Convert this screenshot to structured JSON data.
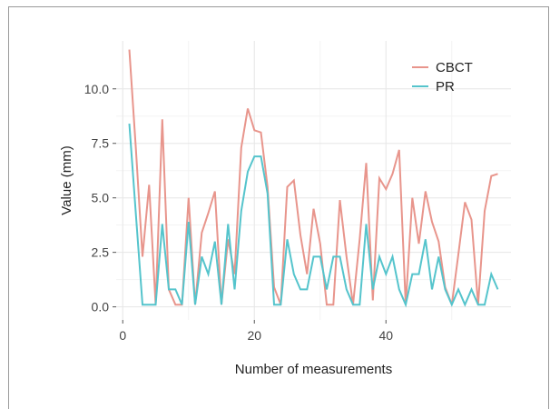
{
  "chart_data": {
    "type": "line",
    "xlabel": "Number of measurements",
    "ylabel": "Value (mm)",
    "xlim": [
      -1,
      59
    ],
    "ylim": [
      -0.6,
      12.2
    ],
    "x_ticks": [
      0,
      20,
      40
    ],
    "x_tick_labels": [
      "0",
      "20",
      "40"
    ],
    "y_ticks": [
      0,
      2.5,
      5,
      7.5,
      10
    ],
    "y_tick_labels": [
      "0.0",
      "2.5",
      "5.0",
      "7.5",
      "10.0"
    ],
    "grid": true,
    "legend_position": "top-right",
    "x": [
      1,
      2,
      3,
      4,
      5,
      6,
      7,
      8,
      9,
      10,
      11,
      12,
      13,
      14,
      15,
      16,
      17,
      18,
      19,
      20,
      21,
      22,
      23,
      24,
      25,
      26,
      27,
      28,
      29,
      30,
      31,
      32,
      33,
      34,
      35,
      36,
      37,
      38,
      39,
      40,
      41,
      42,
      43,
      44,
      45,
      46,
      47,
      48,
      49,
      50,
      51,
      52,
      53,
      54,
      55,
      56,
      57
    ],
    "series": [
      {
        "name": "CBCT",
        "color": "#e8958c",
        "values": [
          11.8,
          7.2,
          2.3,
          5.6,
          0.1,
          8.6,
          0.8,
          0.1,
          0.1,
          5.0,
          0.1,
          3.4,
          4.3,
          5.3,
          0.1,
          3.1,
          1.5,
          7.3,
          9.1,
          8.1,
          8.0,
          5.5,
          0.9,
          0.1,
          5.5,
          5.8,
          3.3,
          1.5,
          4.5,
          2.9,
          0.1,
          0.1,
          4.9,
          2.3,
          0.1,
          3.1,
          6.6,
          0.3,
          5.9,
          5.4,
          6.1,
          7.2,
          0.1,
          5.0,
          2.9,
          5.3,
          3.9,
          3.0,
          0.9,
          0.1,
          2.4,
          4.8,
          4.0,
          0.1,
          4.4,
          6.0,
          6.1
        ]
      },
      {
        "name": "PR",
        "color": "#55c4cc",
        "values": [
          8.4,
          4.2,
          0.1,
          0.1,
          0.1,
          3.8,
          0.8,
          0.8,
          0.1,
          3.9,
          0.1,
          2.3,
          1.5,
          3.0,
          0.1,
          3.8,
          0.8,
          4.4,
          6.2,
          6.9,
          6.9,
          5.2,
          0.1,
          0.1,
          3.1,
          1.5,
          0.8,
          0.8,
          2.3,
          2.3,
          0.8,
          2.3,
          2.3,
          0.8,
          0.1,
          0.1,
          3.8,
          0.8,
          2.3,
          1.5,
          2.3,
          0.8,
          0.1,
          1.5,
          1.5,
          3.1,
          0.8,
          2.3,
          0.8,
          0.1,
          0.8,
          0.1,
          0.8,
          0.1,
          0.1,
          1.5,
          0.8
        ]
      }
    ]
  }
}
